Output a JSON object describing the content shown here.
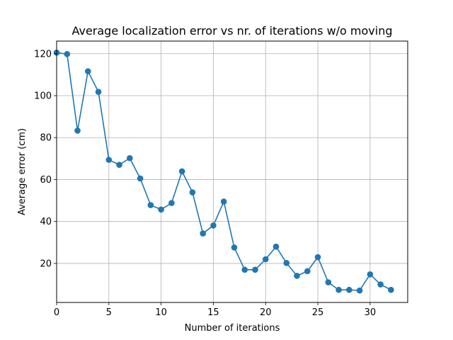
{
  "chart_data": {
    "type": "line",
    "title": "Average localization error vs nr. of iterations w/o moving",
    "xlabel": "Number of iterations",
    "ylabel": "Average error (cm)",
    "xlim": [
      0,
      33.6
    ],
    "ylim": [
      1.4,
      126.0
    ],
    "xticks": [
      0,
      5,
      10,
      15,
      20,
      25,
      30
    ],
    "yticks": [
      20,
      40,
      60,
      80,
      100,
      120
    ],
    "grid": true,
    "series": [
      {
        "color": "#1f77b4",
        "marker": "circle",
        "x": [
          0,
          1,
          2,
          3,
          4,
          5,
          6,
          7,
          8,
          9,
          10,
          11,
          12,
          13,
          14,
          15,
          16,
          17,
          18,
          19,
          20,
          21,
          22,
          23,
          24,
          25,
          26,
          27,
          28,
          29,
          30,
          31,
          32
        ],
        "y": [
          120.5,
          119.8,
          83.3,
          111.6,
          101.8,
          69.4,
          67.0,
          70.2,
          60.5,
          47.8,
          45.7,
          48.8,
          63.9,
          53.9,
          34.3,
          38.1,
          49.5,
          27.6,
          17.0,
          17.0,
          22.0,
          28.0,
          20.2,
          14.1,
          16.3,
          23.0,
          11.0,
          7.4,
          7.4,
          7.1,
          14.8,
          10.0,
          7.4
        ]
      }
    ]
  }
}
